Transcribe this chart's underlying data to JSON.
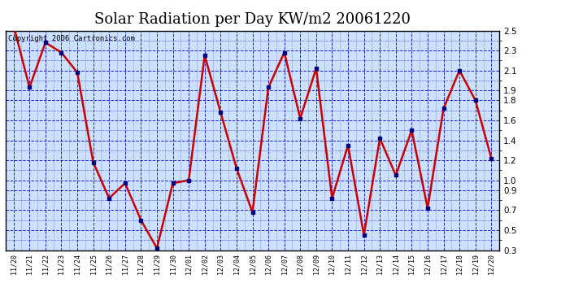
{
  "title": "Solar Radiation per Day KW/m2 20061220",
  "copyright": "Copyright 2006 Cartronics.com",
  "x_labels": [
    "11/20",
    "11/21",
    "11/22",
    "11/23",
    "11/24",
    "11/25",
    "11/26",
    "11/27",
    "11/28",
    "11/29",
    "11/30",
    "12/01",
    "12/02",
    "12/03",
    "12/04",
    "12/05",
    "12/06",
    "12/07",
    "12/08",
    "12/09",
    "12/10",
    "12/11",
    "12/12",
    "12/13",
    "12/14",
    "12/15",
    "12/16",
    "12/17",
    "12/18",
    "12/19",
    "12/20"
  ],
  "values": [
    2.55,
    1.93,
    2.38,
    2.28,
    2.08,
    1.18,
    0.82,
    0.97,
    0.6,
    0.32,
    0.97,
    1.0,
    2.25,
    1.68,
    1.12,
    0.68,
    1.93,
    2.28,
    1.62,
    2.12,
    0.82,
    1.35,
    0.45,
    1.42,
    1.05,
    1.5,
    0.72,
    1.72,
    2.1,
    1.8,
    1.22
  ],
  "ylim": [
    0.3,
    2.5
  ],
  "yticks": [
    0.3,
    0.5,
    0.7,
    0.9,
    1.0,
    1.2,
    1.4,
    1.6,
    1.8,
    1.9,
    2.1,
    2.3,
    2.5
  ],
  "line_color": "#cc0000",
  "marker_color": "#000080",
  "bg_color": "#ffffff",
  "plot_bg_color": "#cce0ff",
  "grid_color": "#0000bb",
  "title_fontsize": 13,
  "copyright_fontsize": 6.5,
  "tick_fontsize": 7.5,
  "xtick_fontsize": 6.0
}
